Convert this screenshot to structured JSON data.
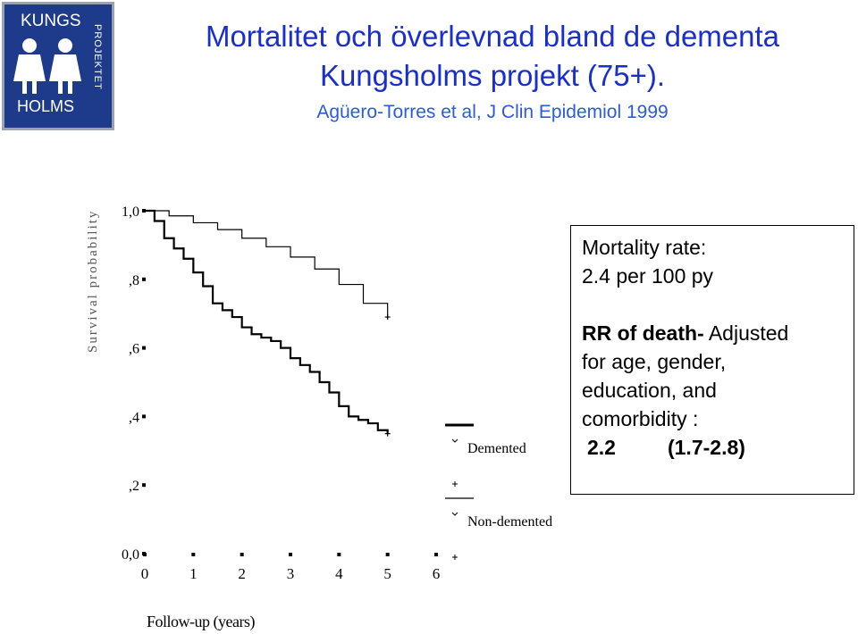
{
  "logo": {
    "top": "KUNGS",
    "bottom": "HOLMS",
    "side": "PROJEKTET"
  },
  "title_line1": "Mortalitet och överlevnad bland de dementa",
  "title_line2": "Kungsholms projekt (75+).",
  "subtitle": "Agüero-Torres et al, J Clin Epidemiol 1999",
  "chart_data": {
    "type": "line",
    "title": "",
    "xlabel": "Follow-up (years)",
    "ylabel": "Survival probability",
    "xlim": [
      0,
      6
    ],
    "ylim": [
      0,
      1
    ],
    "x_ticks": [
      "0",
      "1",
      "2",
      "3",
      "4",
      "5",
      "6"
    ],
    "y_ticks": [
      "0,0",
      ",2",
      ",4",
      ",6",
      ",8",
      "1,0"
    ],
    "series": [
      {
        "name": "Demented",
        "x": [
          0,
          0.2,
          0.4,
          0.6,
          0.8,
          1.0,
          1.2,
          1.4,
          1.6,
          1.8,
          2.0,
          2.2,
          2.4,
          2.6,
          2.8,
          3.0,
          3.2,
          3.4,
          3.6,
          3.8,
          4.0,
          4.2,
          4.4,
          4.6,
          4.8,
          5.0
        ],
        "values": [
          1.0,
          0.97,
          0.92,
          0.89,
          0.86,
          0.82,
          0.78,
          0.73,
          0.71,
          0.69,
          0.66,
          0.64,
          0.63,
          0.62,
          0.6,
          0.57,
          0.55,
          0.53,
          0.5,
          0.47,
          0.43,
          0.4,
          0.39,
          0.38,
          0.36,
          0.35
        ]
      },
      {
        "name": "Non-demented",
        "x": [
          0,
          0.5,
          1.0,
          1.5,
          2.0,
          2.5,
          3.0,
          3.5,
          4.0,
          4.5,
          5.0
        ],
        "values": [
          1.0,
          0.985,
          0.965,
          0.945,
          0.92,
          0.895,
          0.865,
          0.83,
          0.785,
          0.73,
          0.69
        ]
      }
    ],
    "legend": [
      "Demented",
      "Non-demented"
    ],
    "legend_position": "right"
  },
  "info": {
    "line1": "Mortality rate:",
    "line2": "2.4 per 100 py",
    "rr_bold": "RR of death-",
    "rr_rest": " Adjusted",
    "line4": "for age, gender,",
    "line5": "education,  and",
    "line6": "comorbidity :",
    "value": "2.2",
    "ci": "(1.7-2.8)"
  }
}
